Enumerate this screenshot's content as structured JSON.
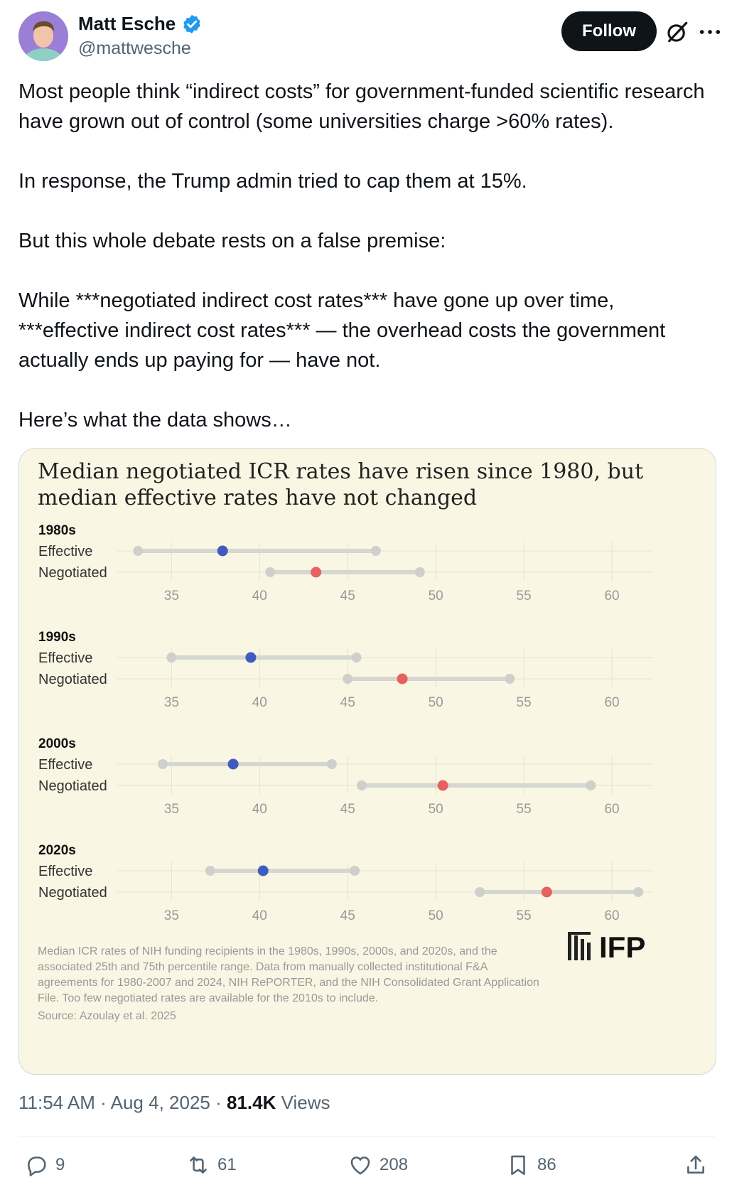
{
  "author": {
    "name": "Matt Esche",
    "handle": "@mattwesche",
    "verified": true,
    "avatar": "avatar"
  },
  "header": {
    "follow_label": "Follow",
    "icons": [
      "verified-badge-icon",
      "grok-icon",
      "more-icon"
    ]
  },
  "tweet": {
    "text": "Most people think “indirect costs” for government-funded scientific research have grown out of control (some universities charge >60% rates).\n\nIn response, the Trump admin tried to cap them at 15%.\n\nBut this whole debate rests on a false premise:\n\nWhile ***negotiated indirect cost rates*** have gone up over time, ***effective indirect cost rates*** — the overhead costs the government actually ends up paying for — have not.\n\nHere’s what the data shows…"
  },
  "chart_data": {
    "type": "dumbbell",
    "title_line1": "Median negotiated ICR rates have risen since 1980, but",
    "title_line2": "median effective rates have not changed",
    "x_ticks": [
      35,
      40,
      45,
      50,
      55,
      60
    ],
    "xlim": [
      32,
      62.5
    ],
    "row_labels": [
      "Effective",
      "Negotiated"
    ],
    "panels": [
      {
        "decade": "1980s",
        "effective": {
          "p25": 33.1,
          "median": 37.9,
          "p75": 46.6
        },
        "negotiated": {
          "p25": 40.6,
          "median": 43.2,
          "p75": 49.1
        }
      },
      {
        "decade": "1990s",
        "effective": {
          "p25": 35.0,
          "median": 39.5,
          "p75": 45.5
        },
        "negotiated": {
          "p25": 45.0,
          "median": 48.1,
          "p75": 54.2
        }
      },
      {
        "decade": "2000s",
        "effective": {
          "p25": 34.5,
          "median": 38.5,
          "p75": 44.1
        },
        "negotiated": {
          "p25": 45.8,
          "median": 50.4,
          "p75": 58.8
        }
      },
      {
        "decade": "2020s",
        "effective": {
          "p25": 37.2,
          "median": 40.2,
          "p75": 45.4
        },
        "negotiated": {
          "p25": 52.5,
          "median": 56.3,
          "p75": 61.5
        }
      }
    ],
    "colors": {
      "effective": "#3f5bbf",
      "negotiated": "#e8605f",
      "range": "#d6d6d2",
      "endpoint": "#cfcfcc"
    },
    "caption_lines": [
      "Median ICR rates of NIH funding recipients in the 1980s, 1990s, 2000s, and 2020s, and the",
      "associated 25th and 75th percentile range. Data from manually collected institutional F&A",
      "agreements for 1980-2007 and 2024, NIH RePORTER, and the NIH Consolidated Grant Application",
      "File. Too few negotiated rates are available for the 2010s to include."
    ],
    "source": "Source: Azoulay et al. 2025",
    "logo_text": "IFP"
  },
  "meta": {
    "time": "11:54 AM",
    "date": "Aug 4, 2025",
    "views_count": "81.4K",
    "views_label": "Views"
  },
  "actions": {
    "replies": "9",
    "reposts": "61",
    "likes": "208",
    "bookmarks": "86"
  }
}
